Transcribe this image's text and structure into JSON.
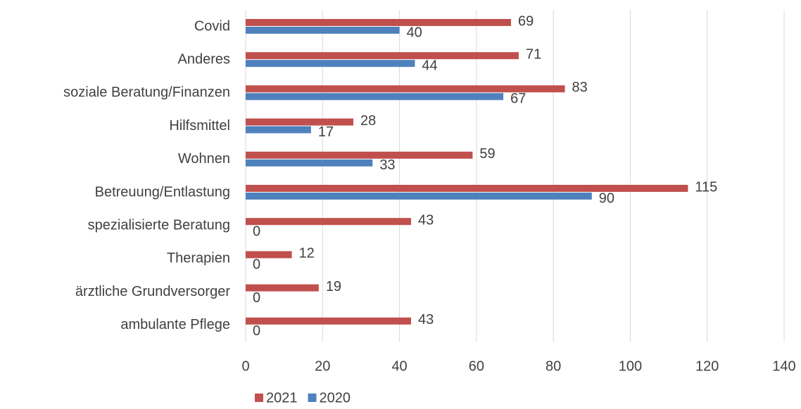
{
  "chart_data": {
    "type": "hbar",
    "categories": [
      "Covid",
      "Anderes",
      "soziale Beratung/Finanzen",
      "Hilfsmittel",
      "Wohnen ",
      "Betreuung/Entlastung",
      "spezialisierte Beratung",
      "Therapien",
      "ärztliche Grundversorger",
      "ambulante Pflege"
    ],
    "series": [
      {
        "name": "2021",
        "color": "#c0504d",
        "values": [
          69,
          71,
          83,
          28,
          59,
          115,
          43,
          12,
          19,
          43
        ]
      },
      {
        "name": "2020",
        "color": "#4f81bd",
        "values": [
          40,
          44,
          67,
          17,
          33,
          90,
          0,
          0,
          0,
          0
        ]
      }
    ],
    "xlim": [
      0,
      140
    ],
    "xticks": [
      0,
      20,
      40,
      60,
      80,
      100,
      120,
      140
    ],
    "grid": true,
    "legend": "bottom"
  }
}
